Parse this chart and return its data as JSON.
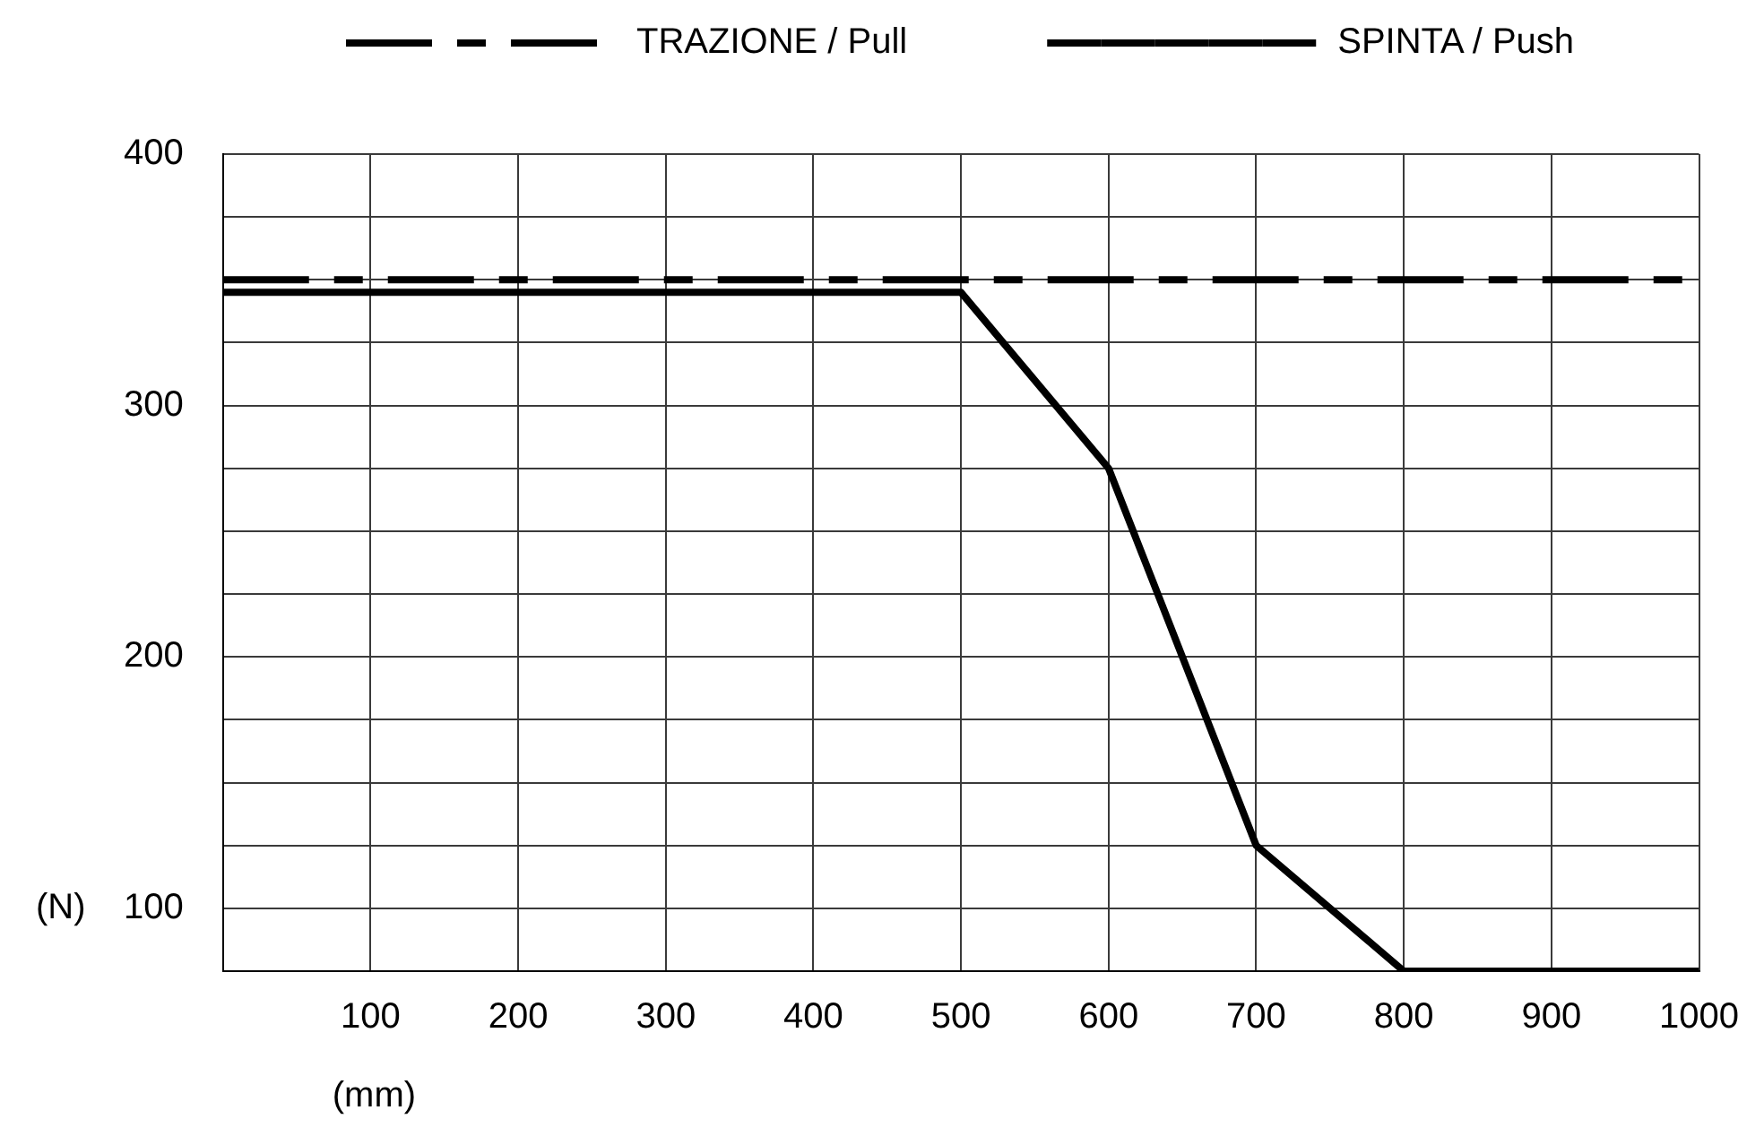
{
  "chart_data": {
    "type": "line",
    "xlabel": "(mm)",
    "ylabel": "(N)",
    "x": [
      0,
      500,
      600,
      700,
      800,
      1000
    ],
    "series": [
      {
        "name": "TRAZIONE / Pull",
        "color": "#000000",
        "line_style": "dashed",
        "x": [
          0,
          1000
        ],
        "values": [
          350,
          350
        ]
      },
      {
        "name": "SPINTA / Push",
        "color": "#000000",
        "line_style": "solid",
        "values": [
          345,
          345,
          275,
          125,
          75,
          75
        ]
      }
    ],
    "xlim": [
      0,
      1000
    ],
    "xticks": [
      100,
      200,
      300,
      400,
      500,
      600,
      700,
      800,
      900,
      1000
    ],
    "ylim": [
      75,
      400
    ],
    "yticks": [
      {
        "value": 75,
        "label": null
      },
      100,
      {
        "value": 125,
        "label": null
      },
      {
        "value": 150,
        "label": null
      },
      {
        "value": 175,
        "label": null
      },
      200,
      {
        "value": 225,
        "label": null
      },
      {
        "value": 250,
        "label": null
      },
      {
        "value": 275,
        "label": null
      },
      300,
      {
        "value": 325,
        "label": null
      },
      {
        "value": 350,
        "label": null
      },
      {
        "value": 375,
        "label": null
      },
      400
    ],
    "grid": true,
    "legend": "top",
    "marker": "none"
  }
}
